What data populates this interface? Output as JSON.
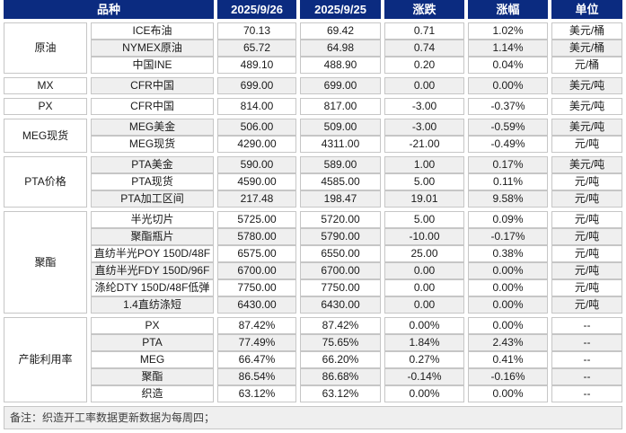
{
  "colors": {
    "header_bg": "#0b2b80",
    "header_text": "#ffffff",
    "up_red": "#ff0000",
    "down_green": "#00b05a",
    "stripe": "#efefef",
    "border": "#c6c6c6",
    "text": "#1a1a1a",
    "note_text": "#404040"
  },
  "table": {
    "header": {
      "product": "品种",
      "date1": "2025/9/26",
      "date2": "2025/9/25",
      "change": "涨跌",
      "change_pct": "涨幅",
      "unit": "单位"
    },
    "groups": [
      {
        "name": "原油",
        "rows": [
          {
            "item": "ICE布油",
            "v1": "70.13",
            "v2": "69.42",
            "chg": "0.71",
            "pct": "1.02%",
            "unit": "美元/桶",
            "dir": "up"
          },
          {
            "item": "NYMEX原油",
            "v1": "65.72",
            "v2": "64.98",
            "chg": "0.74",
            "pct": "1.14%",
            "unit": "美元/桶",
            "dir": "up"
          },
          {
            "item": "中国INE",
            "v1": "489.10",
            "v2": "488.90",
            "chg": "0.20",
            "pct": "0.04%",
            "unit": "元/桶",
            "dir": "up"
          }
        ]
      },
      {
        "name": "MX",
        "rows": [
          {
            "item": "CFR中国",
            "v1": "699.00",
            "v2": "699.00",
            "chg": "0.00",
            "pct": "0.00%",
            "unit": "美元/吨",
            "dir": "flat"
          }
        ]
      },
      {
        "name": "PX",
        "rows": [
          {
            "item": "CFR中国",
            "v1": "814.00",
            "v2": "817.00",
            "chg": "-3.00",
            "pct": "-0.37%",
            "unit": "美元/吨",
            "dir": "down"
          }
        ]
      },
      {
        "name": "MEG现货",
        "rows": [
          {
            "item": "MEG美金",
            "v1": "506.00",
            "v2": "509.00",
            "chg": "-3.00",
            "pct": "-0.59%",
            "unit": "美元/吨",
            "dir": "down"
          },
          {
            "item": "MEG现货",
            "v1": "4290.00",
            "v2": "4311.00",
            "chg": "-21.00",
            "pct": "-0.49%",
            "unit": "元/吨",
            "dir": "down"
          }
        ]
      },
      {
        "name": "PTA价格",
        "rows": [
          {
            "item": "PTA美金",
            "v1": "590.00",
            "v2": "589.00",
            "chg": "1.00",
            "pct": "0.17%",
            "unit": "美元/吨",
            "dir": "up"
          },
          {
            "item": "PTA现货",
            "v1": "4590.00",
            "v2": "4585.00",
            "chg": "5.00",
            "pct": "0.11%",
            "unit": "元/吨",
            "dir": "up"
          },
          {
            "item": "PTA加工区间",
            "v1": "217.48",
            "v2": "198.47",
            "chg": "19.01",
            "pct": "9.58%",
            "unit": "元/吨",
            "dir": "up"
          }
        ]
      },
      {
        "name": "聚酯",
        "rows": [
          {
            "item": "半光切片",
            "v1": "5725.00",
            "v2": "5720.00",
            "chg": "5.00",
            "pct": "0.09%",
            "unit": "元/吨",
            "dir": "up"
          },
          {
            "item": "聚酯瓶片",
            "v1": "5780.00",
            "v2": "5790.00",
            "chg": "-10.00",
            "pct": "-0.17%",
            "unit": "元/吨",
            "dir": "down"
          },
          {
            "item": "直纺半光POY 150D/48F",
            "v1": "6575.00",
            "v2": "6550.00",
            "chg": "25.00",
            "pct": "0.38%",
            "unit": "元/吨",
            "dir": "up"
          },
          {
            "item": "直纺半光FDY 150D/96F",
            "v1": "6700.00",
            "v2": "6700.00",
            "chg": "0.00",
            "pct": "0.00%",
            "unit": "元/吨",
            "dir": "flat"
          },
          {
            "item": "涤纶DTY 150D/48F低弹",
            "v1": "7750.00",
            "v2": "7750.00",
            "chg": "0.00",
            "pct": "0.00%",
            "unit": "元/吨",
            "dir": "flat"
          },
          {
            "item": "1.4直纺涤短",
            "v1": "6430.00",
            "v2": "6430.00",
            "chg": "0.00",
            "pct": "0.00%",
            "unit": "元/吨",
            "dir": "flat"
          }
        ]
      },
      {
        "name": "产能利用率",
        "rows": [
          {
            "item": "PX",
            "v1": "87.42%",
            "v2": "87.42%",
            "chg": "0.00%",
            "pct": "0.00%",
            "unit": "--",
            "dir": "flat"
          },
          {
            "item": "PTA",
            "v1": "77.49%",
            "v2": "75.65%",
            "chg": "1.84%",
            "pct": "2.43%",
            "unit": "--",
            "dir": "up"
          },
          {
            "item": "MEG",
            "v1": "66.47%",
            "v2": "66.20%",
            "chg": "0.27%",
            "pct": "0.41%",
            "unit": "--",
            "dir": "up"
          },
          {
            "item": "聚酯",
            "v1": "86.54%",
            "v2": "86.68%",
            "chg": "-0.14%",
            "pct": "-0.16%",
            "unit": "--",
            "dir": "down"
          },
          {
            "item": "织造",
            "v1": "63.12%",
            "v2": "63.12%",
            "chg": "0.00%",
            "pct": "0.00%",
            "unit": "--",
            "dir": "flat"
          }
        ]
      }
    ],
    "footer": {
      "note": "备注：织造开工率数据更新数据为每周四；"
    }
  },
  "chart_data": {
    "type": "table",
    "title": "",
    "columns": [
      "品种",
      "品种",
      "2025/9/26",
      "2025/9/25",
      "涨跌",
      "涨幅",
      "单位"
    ],
    "rows": [
      [
        "原油",
        "ICE布油",
        "70.13",
        "69.42",
        "0.71",
        "1.02%",
        "美元/桶"
      ],
      [
        "原油",
        "NYMEX原油",
        "65.72",
        "64.98",
        "0.74",
        "1.14%",
        "美元/桶"
      ],
      [
        "原油",
        "中国INE",
        "489.10",
        "488.90",
        "0.20",
        "0.04%",
        "元/桶"
      ],
      [
        "MX",
        "CFR中国",
        "699.00",
        "699.00",
        "0.00",
        "0.00%",
        "美元/吨"
      ],
      [
        "PX",
        "CFR中国",
        "814.00",
        "817.00",
        "-3.00",
        "-0.37%",
        "美元/吨"
      ],
      [
        "MEG现货",
        "MEG美金",
        "506.00",
        "509.00",
        "-3.00",
        "-0.59%",
        "美元/吨"
      ],
      [
        "MEG现货",
        "MEG现货",
        "4290.00",
        "4311.00",
        "-21.00",
        "-0.49%",
        "元/吨"
      ],
      [
        "PTA价格",
        "PTA美金",
        "590.00",
        "589.00",
        "1.00",
        "0.17%",
        "美元/吨"
      ],
      [
        "PTA价格",
        "PTA现货",
        "4590.00",
        "4585.00",
        "5.00",
        "0.11%",
        "元/吨"
      ],
      [
        "PTA价格",
        "PTA加工区间",
        "217.48",
        "198.47",
        "19.01",
        "9.58%",
        "元/吨"
      ],
      [
        "聚酯",
        "半光切片",
        "5725.00",
        "5720.00",
        "5.00",
        "0.09%",
        "元/吨"
      ],
      [
        "聚酯",
        "聚酯瓶片",
        "5780.00",
        "5790.00",
        "-10.00",
        "-0.17%",
        "元/吨"
      ],
      [
        "聚酯",
        "直纺半光POY 150D/48F",
        "6575.00",
        "6550.00",
        "25.00",
        "0.38%",
        "元/吨"
      ],
      [
        "聚酯",
        "直纺半光FDY 150D/96F",
        "6700.00",
        "6700.00",
        "0.00",
        "0.00%",
        "元/吨"
      ],
      [
        "聚酯",
        "涤纶DTY 150D/48F低弹",
        "7750.00",
        "7750.00",
        "0.00",
        "0.00%",
        "元/吨"
      ],
      [
        "聚酯",
        "1.4直纺涤短",
        "6430.00",
        "6430.00",
        "0.00",
        "0.00%",
        "元/吨"
      ],
      [
        "产能利用率",
        "PX",
        "87.42%",
        "87.42%",
        "0.00%",
        "0.00%",
        "--"
      ],
      [
        "产能利用率",
        "PTA",
        "77.49%",
        "75.65%",
        "1.84%",
        "2.43%",
        "--"
      ],
      [
        "产能利用率",
        "MEG",
        "66.47%",
        "66.20%",
        "0.27%",
        "0.41%",
        "--"
      ],
      [
        "产能利用率",
        "聚酯",
        "86.54%",
        "86.68%",
        "-0.14%",
        "-0.16%",
        "--"
      ],
      [
        "产能利用率",
        "织造",
        "63.12%",
        "63.12%",
        "0.00%",
        "0.00%",
        "--"
      ]
    ],
    "notes": "备注：织造开工率数据更新数据为每周四；",
    "legend_position": "none",
    "grid": true
  }
}
